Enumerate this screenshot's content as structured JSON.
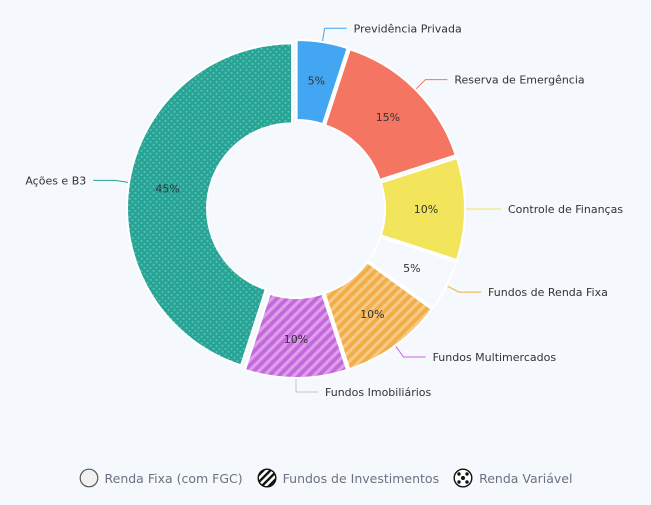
{
  "chart_data": {
    "type": "pie",
    "variant": "donut",
    "slices": [
      {
        "label": "Previdência Privada",
        "value": 5,
        "display": "5%",
        "color": "#43a6f2",
        "pattern": "solid"
      },
      {
        "label": "Reserva de Emergência",
        "value": 15,
        "display": "15%",
        "color": "#f47561",
        "pattern": "solid"
      },
      {
        "label": "Controle de Finanças",
        "value": 10,
        "display": "10%",
        "color": "#f2e45b",
        "pattern": "solid"
      },
      {
        "label": "Fundos de Renda Fixa",
        "value": 5,
        "display": "5%",
        "color": "#f2ad45",
        "pattern": "stripes"
      },
      {
        "label": "Fundos Multimercados",
        "value": 10,
        "display": "10%",
        "color": "#c468dc",
        "pattern": "stripes"
      },
      {
        "label": "Fundos Imobiliários",
        "value": 10,
        "display": "10%",
        "color": "#c3c3c3",
        "pattern": "stripes"
      },
      {
        "label": "Ações e B3",
        "value": 45,
        "display": "45%",
        "color": "#26a394",
        "pattern": "dots"
      }
    ],
    "legend": {
      "placement": "bottom",
      "items": [
        {
          "label": "Renda Fixa (com FGC)",
          "icon": "solid-circle-icon"
        },
        {
          "label": "Fundos de Investimentos",
          "icon": "striped-circle-icon"
        },
        {
          "label": "Renda Variável",
          "icon": "dotted-circle-icon"
        }
      ]
    }
  }
}
